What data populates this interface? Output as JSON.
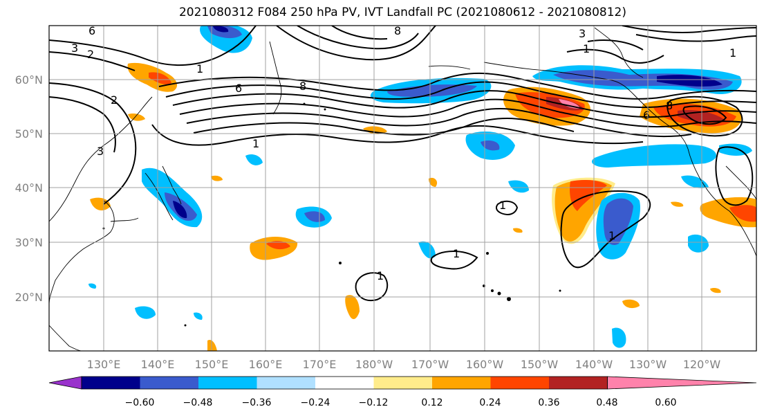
{
  "title": "2021080312 F084 250 hPa PV, IVT Landfall PC (2021080612 - 2021080812)",
  "map": {
    "lat_labels": [
      "60°N",
      "50°N",
      "40°N",
      "30°N",
      "20°N"
    ],
    "lon_labels": [
      "130°E",
      "140°E",
      "150°E",
      "160°E",
      "170°E",
      "180°W",
      "170°W",
      "160°W",
      "150°W",
      "140°W",
      "130°W",
      "120°W"
    ],
    "contour_labels": [
      "1",
      "2",
      "3",
      "6",
      "8"
    ]
  },
  "colorbar": {
    "tick_labels": [
      "−0.60",
      "−0.48",
      "−0.36",
      "−0.24",
      "−0.12",
      "0.12",
      "0.24",
      "0.36",
      "0.48",
      "0.60"
    ],
    "colors": [
      "#9932cc",
      "#00008b",
      "#3a5bcd",
      "#00bfff",
      "#b0e0ff",
      "#ffffff",
      "#ffec8b",
      "#ffa500",
      "#ff4500",
      "#b22222",
      "#ff82ab"
    ]
  }
}
